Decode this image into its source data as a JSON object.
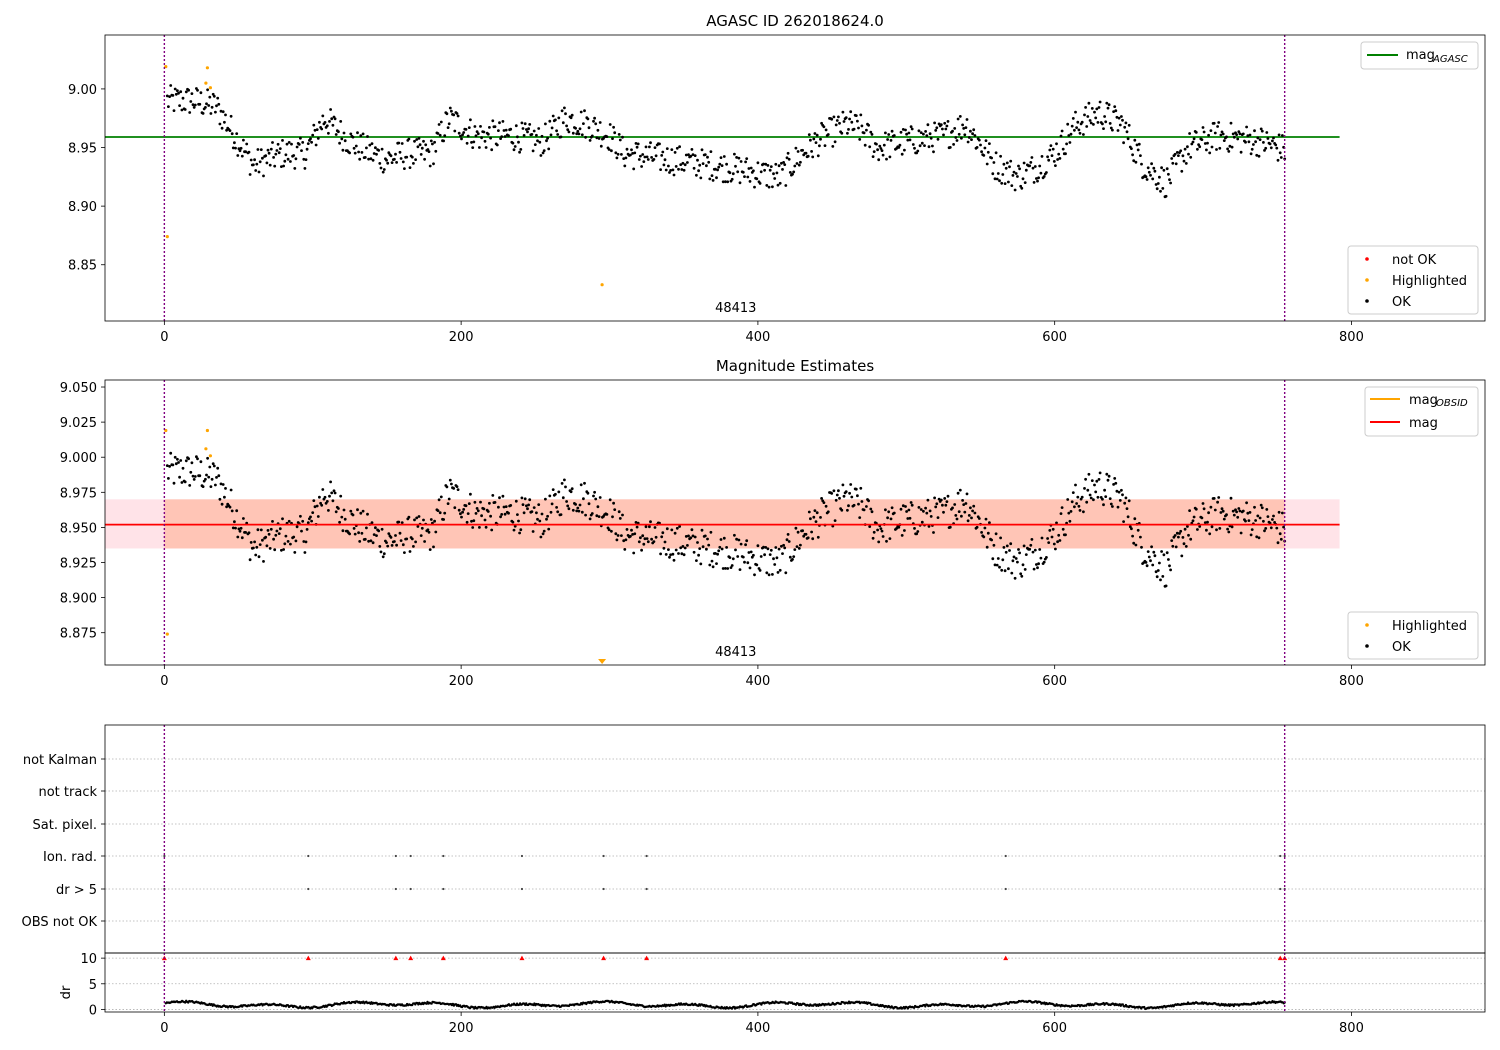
{
  "chart_data": [
    {
      "type": "scatter",
      "title": "AGASC ID 262018624.0",
      "xlim": [
        -40,
        890
      ],
      "ylim": [
        8.802,
        9.046
      ],
      "xticks": [
        0,
        200,
        400,
        600,
        800
      ],
      "yticks": [
        8.85,
        8.9,
        8.95,
        9.0
      ],
      "ytick_decimals": 2,
      "annotation": {
        "text": "48413",
        "x": 377
      },
      "hlines": [
        {
          "name": "mag",
          "sub": "AGASC",
          "y": 8.959,
          "x0": -40,
          "x1": 792,
          "color": "#008000"
        }
      ],
      "vlines": [
        0,
        755
      ],
      "highlighted": [
        [
          1,
          9.019
        ],
        [
          2,
          8.874
        ],
        [
          28,
          9.005
        ],
        [
          29,
          9.018
        ],
        [
          31,
          9.001
        ],
        [
          295,
          8.833
        ]
      ],
      "legend_lines": [
        {
          "name": "mag",
          "sub": "AGASC",
          "color": "#008000"
        }
      ],
      "legend_points": [
        {
          "name": "not OK",
          "color": "#ff0000"
        },
        {
          "name": "Highlighted",
          "color": "#ffa500"
        },
        {
          "name": "OK",
          "color": "#000000"
        }
      ]
    },
    {
      "type": "scatter",
      "title": "Magnitude Estimates",
      "xlim": [
        -40,
        890
      ],
      "ylim": [
        8.852,
        9.055
      ],
      "xticks": [
        0,
        200,
        400,
        600,
        800
      ],
      "yticks": [
        8.875,
        8.9,
        8.925,
        8.95,
        8.975,
        9.0,
        9.025,
        9.05
      ],
      "ytick_decimals": 3,
      "annotation": {
        "text": "48413",
        "x": 377
      },
      "band_outer": {
        "y0": 8.935,
        "y1": 8.97,
        "x0": -40,
        "x1": 792,
        "color": "#ffc0cb"
      },
      "band_inner": {
        "y0": 8.935,
        "y1": 8.97,
        "x0": 0,
        "x1": 755,
        "color": "#ffa07a"
      },
      "hlines": [
        {
          "name": "mag",
          "y": 8.952,
          "x0": -40,
          "x1": 792,
          "color": "#ff0000"
        }
      ],
      "vlines": [
        0,
        755
      ],
      "highlighted": [
        [
          1,
          9.019
        ],
        [
          2,
          8.874
        ],
        [
          28,
          9.006
        ],
        [
          29,
          9.019
        ],
        [
          31,
          9.001
        ]
      ],
      "offscale_marker": {
        "x": 295,
        "color": "#ffa500"
      },
      "legend_lines": [
        {
          "name": "mag",
          "sub": "OBSID",
          "color": "#ffa500"
        },
        {
          "name": "mag",
          "color": "#ff0000"
        }
      ],
      "legend_points": [
        {
          "name": "Highlighted",
          "color": "#ffa500"
        },
        {
          "name": "OK",
          "color": "#000000"
        }
      ]
    },
    {
      "type": "scatter",
      "categories": [
        "not Kalman",
        "not track",
        "Sat. pixel.",
        "Ion. rad.",
        "dr > 5",
        "OBS not OK"
      ],
      "flag_x": [
        0,
        97,
        156,
        166,
        188,
        241,
        296,
        325,
        567,
        752,
        755
      ],
      "xlim": [
        -40,
        890
      ],
      "xticks": [
        0,
        200,
        400,
        600,
        800
      ],
      "vlines": [
        0,
        755
      ]
    },
    {
      "type": "scatter",
      "ylabel": "dr",
      "xlim": [
        -40,
        890
      ],
      "ylim": [
        -0.5,
        11
      ],
      "xticks": [
        0,
        200,
        400,
        600,
        800
      ],
      "yticks": [
        0,
        5,
        10
      ],
      "dr_flag_value": 10,
      "vlines": [
        0,
        755
      ]
    }
  ]
}
